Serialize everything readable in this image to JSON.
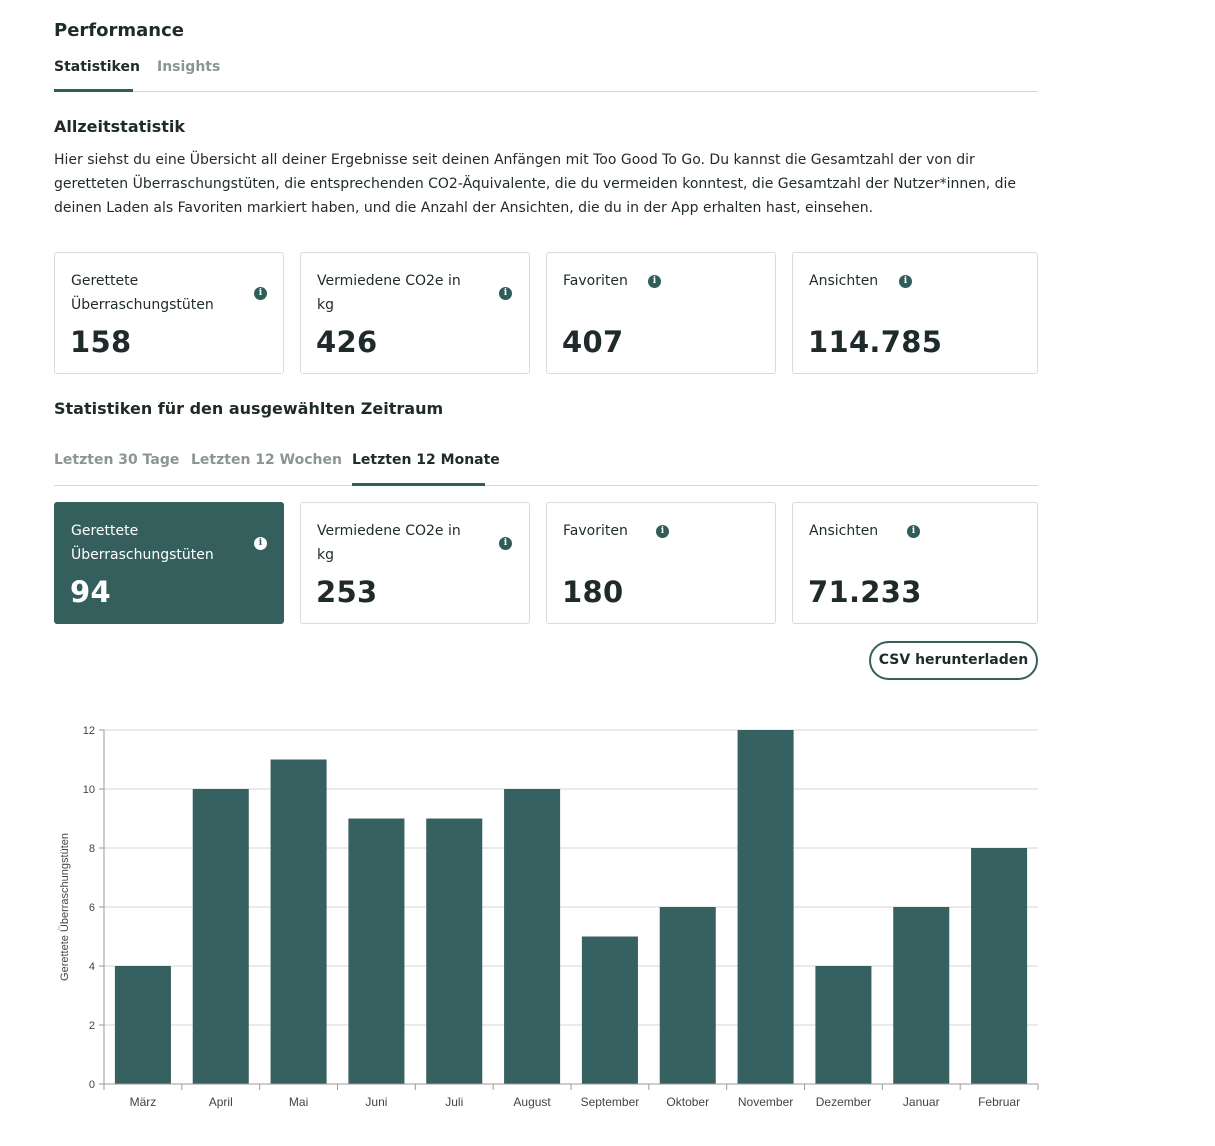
{
  "header": {
    "title": "Performance"
  },
  "main_tabs": [
    {
      "label": "Statistiken",
      "active": true
    },
    {
      "label": "Insights",
      "active": false
    }
  ],
  "alltime": {
    "title": "Allzeitstatistik",
    "description": "Hier siehst du eine Übersicht all deiner Ergebnisse seit deinen Anfängen mit Too Good To Go. Du kannst die Gesamtzahl der von dir geretteten Überraschungstüten, die entsprechenden CO2-Äquivalente, die du vermeiden konntest, die Gesamtzahl der Nutzer*innen, die deinen Laden als Favoriten markiert haben, und die Anzahl der Ansichten, die du in der App erhalten hast, einsehen.",
    "cards": [
      {
        "label_line1": "Gerettete",
        "label_line2": "Überraschungstüten",
        "value": "158"
      },
      {
        "label_line1": "Vermiedene CO2e in",
        "label_line2": "kg",
        "value": "426"
      },
      {
        "label_line1": "Favoriten",
        "label_line2": "",
        "value": "407"
      },
      {
        "label_line1": "Ansichten",
        "label_line2": "",
        "value": "114.785"
      }
    ]
  },
  "period": {
    "title": "Statistiken für den ausgewählten Zeitraum",
    "tabs": [
      {
        "label": "Letzten 30 Tage",
        "active": false
      },
      {
        "label": "Letzten 12 Wochen",
        "active": false
      },
      {
        "label": "Letzten 12 Monate",
        "active": true
      }
    ],
    "cards": [
      {
        "label_line1": "Gerettete",
        "label_line2": "Überraschungstüten",
        "value": "94",
        "selected": true
      },
      {
        "label_line1": "Vermiedene CO2e in",
        "label_line2": "kg",
        "value": "253",
        "selected": false
      },
      {
        "label_line1": "Favoriten",
        "label_line2": "",
        "value": "180",
        "selected": false
      },
      {
        "label_line1": "Ansichten",
        "label_line2": "",
        "value": "71.233",
        "selected": false
      }
    ],
    "csv_button": "CSV herunterladen"
  },
  "icons": {
    "info": "info-icon"
  },
  "colors": {
    "accent": "#355f5d",
    "bar": "#376061"
  },
  "chart_data": {
    "type": "bar",
    "categories": [
      "März",
      "April",
      "Mai",
      "Juni",
      "Juli",
      "August",
      "September",
      "Oktober",
      "November",
      "Dezember",
      "Januar",
      "Februar"
    ],
    "values": [
      4,
      10,
      11,
      9,
      9,
      10,
      5,
      6,
      12,
      4,
      6,
      8
    ],
    "ylabel": "Gerettete Überraschungstüten",
    "xlabel": "",
    "ylim": [
      0,
      12
    ],
    "yticks": [
      0,
      2,
      4,
      6,
      8,
      10,
      12
    ],
    "grid": true
  }
}
